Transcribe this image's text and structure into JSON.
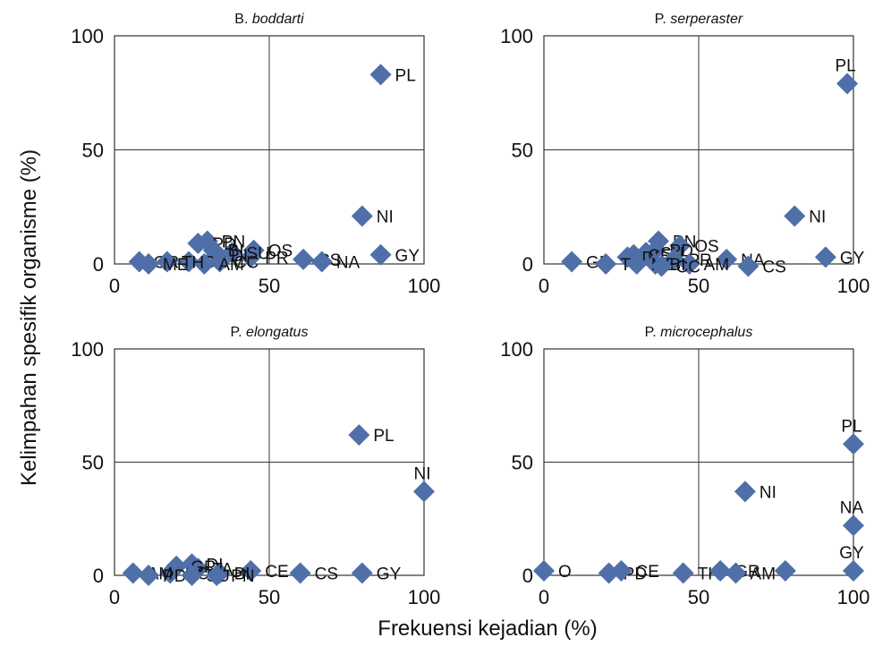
{
  "figure": {
    "ylabel": "Kelimpahan spesifik organisme (%)",
    "xlabel": "Frekuensi kejadian (%)",
    "marker_color": "#4F6FA8"
  },
  "chart_data": [
    {
      "type": "scatter",
      "title_prefix": "B.",
      "title_species": "boddarti",
      "xlim": [
        0,
        100
      ],
      "ylim": [
        0,
        100
      ],
      "xticks": [
        "0",
        "50",
        "100"
      ],
      "yticks": [
        "0",
        "50",
        "100"
      ],
      "grid": "quadrant",
      "points": [
        {
          "label": "PL",
          "x": 86,
          "y": 83
        },
        {
          "label": "NI",
          "x": 80,
          "y": 21
        },
        {
          "label": "GY",
          "x": 86,
          "y": 4
        },
        {
          "label": "CS",
          "x": 61,
          "y": 2
        },
        {
          "label": "NA",
          "x": 67,
          "y": 1
        },
        {
          "label": "OS",
          "x": 45,
          "y": 6
        },
        {
          "label": "PR",
          "x": 44,
          "y": 3
        },
        {
          "label": "SU",
          "x": 38,
          "y": 5
        },
        {
          "label": "PN",
          "x": 30,
          "y": 10
        },
        {
          "label": "PD",
          "x": 27,
          "y": 9
        },
        {
          "label": "BI",
          "x": 32,
          "y": 6
        },
        {
          "label": "DI",
          "x": 33,
          "y": 4
        },
        {
          "label": "CE",
          "x": 24,
          "y": 1
        },
        {
          "label": "CC",
          "x": 34,
          "y": 1
        },
        {
          "label": "AM",
          "x": 29,
          "y": 0
        },
        {
          "label": "GR",
          "x": 8,
          "y": 1
        },
        {
          "label": "TH",
          "x": 17,
          "y": 1
        },
        {
          "label": "ME",
          "x": 11,
          "y": 0
        }
      ]
    },
    {
      "type": "scatter",
      "title_prefix": "P.",
      "title_species": "serperaster",
      "xlim": [
        0,
        100
      ],
      "ylim": [
        0,
        100
      ],
      "xticks": [
        "0",
        "50",
        "100"
      ],
      "yticks": [
        "0",
        "50",
        "100"
      ],
      "grid": "quadrant",
      "points": [
        {
          "label": "PL",
          "x": 98,
          "y": 79
        },
        {
          "label": "NI",
          "x": 81,
          "y": 21
        },
        {
          "label": "GY",
          "x": 91,
          "y": 3
        },
        {
          "label": "NA",
          "x": 59,
          "y": 2
        },
        {
          "label": "CS",
          "x": 66,
          "y": -1
        },
        {
          "label": "PN",
          "x": 37,
          "y": 10
        },
        {
          "label": "OS",
          "x": 44,
          "y": 8
        },
        {
          "label": "PD",
          "x": 36,
          "y": 6
        },
        {
          "label": "SU",
          "x": 33,
          "y": 5
        },
        {
          "label": "CE",
          "x": 29,
          "y": 4
        },
        {
          "label": "DI",
          "x": 27,
          "y": 3
        },
        {
          "label": "PR",
          "x": 42,
          "y": 2
        },
        {
          "label": "AM",
          "x": 47,
          "y": 0
        },
        {
          "label": "BI",
          "x": 36,
          "y": 0
        },
        {
          "label": "GR",
          "x": 9,
          "y": 1
        },
        {
          "label": "TH",
          "x": 20,
          "y": 0
        },
        {
          "label": "ME",
          "x": 30,
          "y": 0
        },
        {
          "label": "CC",
          "x": 38,
          "y": -1
        }
      ]
    },
    {
      "type": "scatter",
      "title_prefix": "P.",
      "title_species": "elongatus",
      "xlim": [
        0,
        100
      ],
      "ylim": [
        0,
        100
      ],
      "xticks": [
        "0",
        "50",
        "100"
      ],
      "yticks": [
        "0",
        "50",
        "100"
      ],
      "grid": "quadrant",
      "points": [
        {
          "label": "PL",
          "x": 79,
          "y": 62
        },
        {
          "label": "NI",
          "x": 100,
          "y": 37
        },
        {
          "label": "GY",
          "x": 80,
          "y": 1
        },
        {
          "label": "CS",
          "x": 60,
          "y": 1
        },
        {
          "label": "CE",
          "x": 44,
          "y": 2
        },
        {
          "label": "BI",
          "x": 34,
          "y": 1
        },
        {
          "label": "TA",
          "x": 27,
          "y": 3
        },
        {
          "label": "DI",
          "x": 25,
          "y": 5
        },
        {
          "label": "GR",
          "x": 20,
          "y": 4
        },
        {
          "label": "CC",
          "x": 18,
          "y": 1
        },
        {
          "label": "AM",
          "x": 6,
          "y": 1
        },
        {
          "label": "PD",
          "x": 11,
          "y": 0
        },
        {
          "label": "SU",
          "x": 25,
          "y": 0
        },
        {
          "label": "PN",
          "x": 33,
          "y": 0
        }
      ]
    },
    {
      "type": "scatter",
      "title_prefix": "P.",
      "title_species": "microcephalus",
      "xlim": [
        0,
        100
      ],
      "ylim": [
        0,
        100
      ],
      "xticks": [
        "0",
        "50",
        "100"
      ],
      "yticks": [
        "0",
        "50",
        "100"
      ],
      "grid": "quadrant",
      "points": [
        {
          "label": "PL",
          "x": 100,
          "y": 58
        },
        {
          "label": "NI",
          "x": 65,
          "y": 37
        },
        {
          "label": "NA",
          "x": 100,
          "y": 22
        },
        {
          "label": "GY",
          "x": 100,
          "y": 2
        },
        {
          "label": "O",
          "x": 0,
          "y": 2
        },
        {
          "label": "PD",
          "x": 21,
          "y": 1
        },
        {
          "label": "CE",
          "x": 25,
          "y": 2
        },
        {
          "label": "TH",
          "x": 45,
          "y": 1
        },
        {
          "label": "GR",
          "x": 57,
          "y": 2
        },
        {
          "label": "AM",
          "x": 62,
          "y": 1
        },
        {
          "label": "",
          "x": 78,
          "y": 2
        }
      ]
    }
  ]
}
